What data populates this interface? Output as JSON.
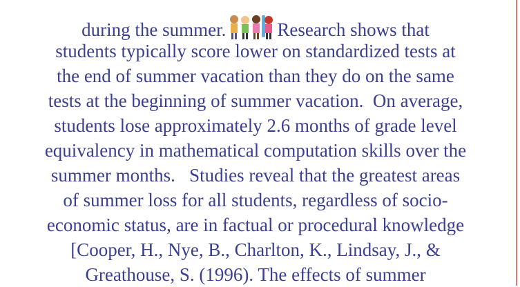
{
  "document": {
    "first_line": {
      "before": "during the summer.",
      "after": "Research shows that"
    },
    "lines": [
      "students typically score lower on standardized tests at",
      "the end of summer vacation than they do on the same",
      "tests at the beginning of summer vacation.  On average,",
      "students lose approximately 2.6 months of grade level",
      "equivalency in mathematical computation skills over the",
      "summer months.   Studies reveal that the greatest areas",
      "of summer loss for all students, regardless of socio-",
      "economic status, are in factual or procedural knowledge",
      "[Cooper, H., Nye, B., Charlton, K., Lindsay, J., &",
      "Greathouse, S. (1996). The effects of summer"
    ]
  }
}
